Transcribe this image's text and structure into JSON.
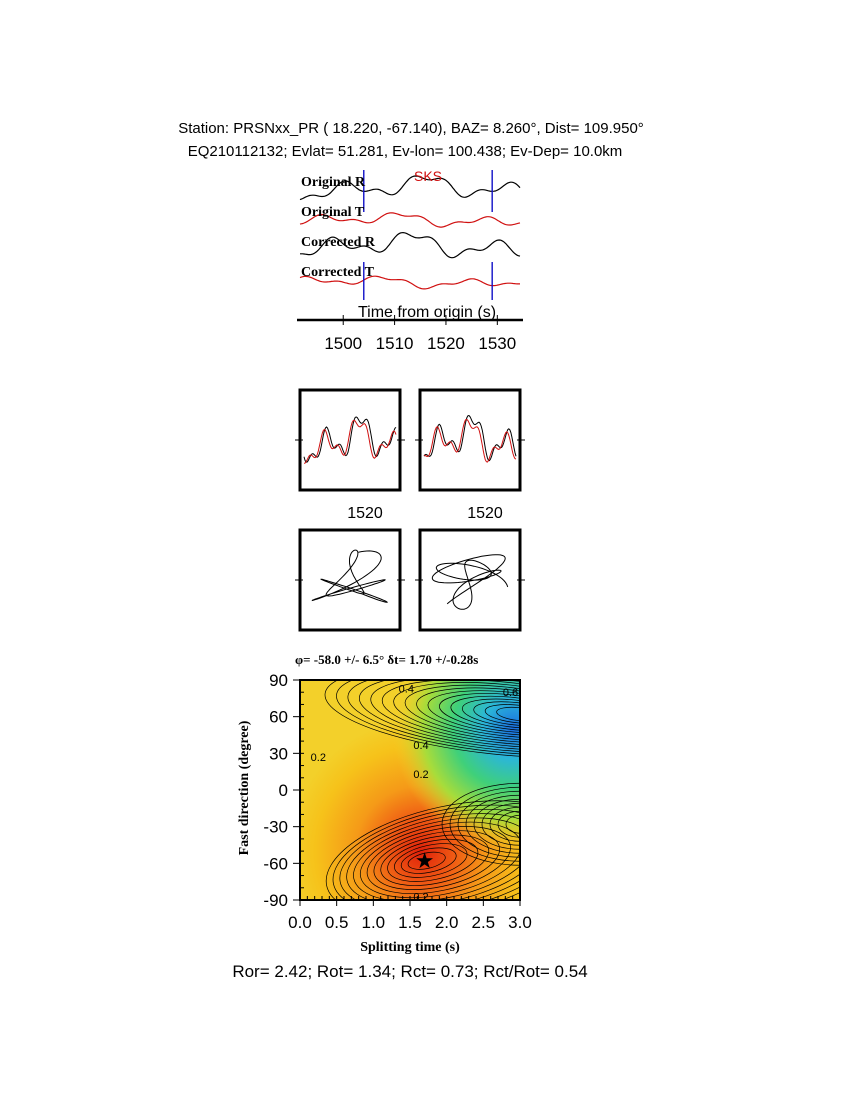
{
  "header": {
    "line1": "Station: PRSNxx_PR (  18.220,  -67.140), BAZ=    8.260°, Dist=  109.950°",
    "line2": "EQ210112132; Evlat=  51.281, Ev-lon= 100.438; Ev-Dep= 10.0km"
  },
  "chart_data": [
    {
      "type": "line",
      "panel": "seismograms",
      "trace_labels": [
        "Original R",
        "Original T",
        "Corrected R",
        "Corrected T"
      ],
      "phase_label": "SKS",
      "xlabel": "Time from origin (s)",
      "xlim": [
        1491,
        1535
      ],
      "x_ticks": [
        1500,
        1510,
        1520,
        1530
      ],
      "window_markers_s": [
        1504,
        1529
      ],
      "colors": {
        "R": "#000000",
        "T": "#d01010",
        "marker": "#1010c8",
        "phase": "#d01010"
      }
    },
    {
      "type": "line",
      "panel": "waveform-overlay",
      "x_ticks": [
        1520,
        1520
      ],
      "series": [
        {
          "color": "#000000"
        },
        {
          "color": "#d01010"
        }
      ]
    },
    {
      "type": "line",
      "panel": "particle-motion"
    },
    {
      "type": "heatmap",
      "panel": "energy-grid",
      "title": "φ= -58.0 +/- 6.5° δt= 1.70 +/-0.28s",
      "xlabel": "Splitting time (s)",
      "ylabel": "Fast direction (degree)",
      "xlim": [
        0,
        3
      ],
      "ylim": [
        -90,
        90
      ],
      "x_ticks": [
        "0.0",
        "0.5",
        "1.0",
        "1.5",
        "2.0",
        "2.5",
        "3.0"
      ],
      "y_ticks": [
        "90",
        "60",
        "30",
        "0",
        "-30",
        "-60",
        "-90"
      ],
      "best_fit": {
        "dt": 1.7,
        "phi": -58.0
      },
      "contour_labels": [
        {
          "text": "0.4",
          "dt": 1.45,
          "phi": 83
        },
        {
          "text": "0.2",
          "dt": 0.25,
          "phi": 27
        },
        {
          "text": "0.4",
          "dt": 1.65,
          "phi": 37
        },
        {
          "text": "0.2",
          "dt": 1.65,
          "phi": 13
        },
        {
          "text": "0.2",
          "dt": 1.65,
          "phi": -87
        },
        {
          "text": "0.6",
          "dt": 2.87,
          "phi": 80
        }
      ]
    }
  ],
  "summary": "Ror= 2.42; Rot= 1.34; Rct= 0.73; Rct/Rot= 0.54"
}
